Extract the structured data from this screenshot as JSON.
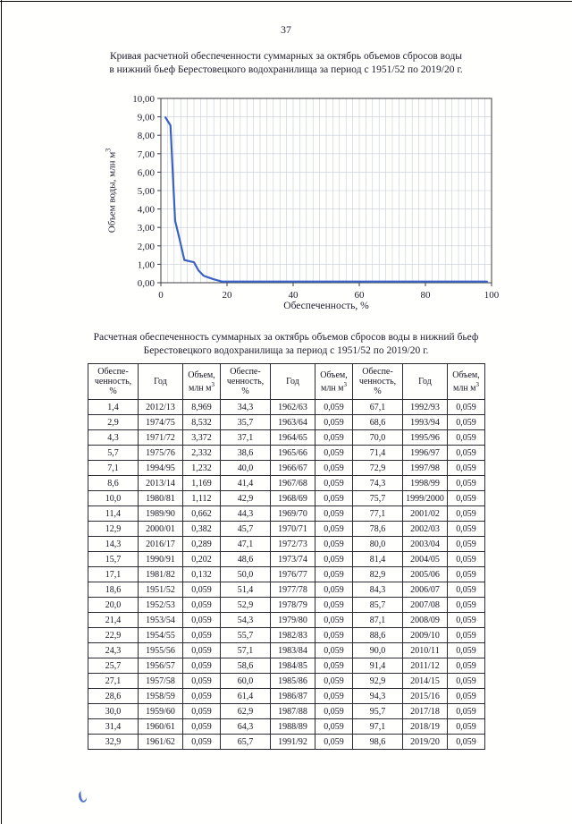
{
  "page": {
    "number": "37"
  },
  "chart": {
    "title_line1": "Кривая расчетной обеспеченности суммарных за октябрь объемов сбросов воды",
    "title_line2": "в нижний бьеф Берестовецкого водохранилища за период с 1951/52 по 2019/20 г.",
    "ylabel_main": "Объем воды, млн м",
    "ylabel_sup": "3",
    "xlabel": "Обеспеченность, %"
  },
  "chart_data": {
    "type": "line",
    "title": "Кривая расчетной обеспеченности суммарных за октябрь объемов сбросов воды в нижний бьеф Берестовецкого водохранилища за период с 1951/52 по 2019/20 г.",
    "xlabel": "Обеспеченность, %",
    "ylabel": "Объем воды, млн м3",
    "xlim": [
      0,
      100
    ],
    "ylim": [
      0,
      10
    ],
    "grid": true,
    "legend": "none",
    "line_color": "#3a62c4",
    "x_ticks": [
      {
        "v": 0,
        "label": "0"
      },
      {
        "v": 20,
        "label": "20"
      },
      {
        "v": 40,
        "label": "40"
      },
      {
        "v": 60,
        "label": "60"
      },
      {
        "v": 80,
        "label": "80"
      },
      {
        "v": 100,
        "label": "100"
      }
    ],
    "y_ticks": [
      {
        "v": 0,
        "label": "0,00"
      },
      {
        "v": 1,
        "label": "1,00"
      },
      {
        "v": 2,
        "label": "2,00"
      },
      {
        "v": 3,
        "label": "3,00"
      },
      {
        "v": 4,
        "label": "4,00"
      },
      {
        "v": 5,
        "label": "5,00"
      },
      {
        "v": 6,
        "label": "6,00"
      },
      {
        "v": 7,
        "label": "7,00"
      },
      {
        "v": 8,
        "label": "8,00"
      },
      {
        "v": 9,
        "label": "9,00"
      },
      {
        "v": 10,
        "label": "10,00"
      }
    ],
    "x": [
      1.4,
      2.9,
      4.3,
      5.7,
      7.1,
      8.6,
      10.0,
      11.4,
      12.9,
      14.3,
      15.7,
      17.1,
      18.6,
      20.0,
      21.4,
      22.9,
      24.3,
      25.7,
      27.1,
      28.6,
      30.0,
      31.4,
      32.9,
      34.3,
      35.7,
      37.1,
      38.6,
      40.0,
      41.4,
      42.9,
      44.3,
      45.7,
      47.1,
      48.6,
      50.0,
      51.4,
      52.9,
      54.3,
      55.7,
      57.1,
      58.6,
      60.0,
      61.4,
      62.9,
      64.3,
      65.7,
      67.1,
      68.6,
      70.0,
      71.4,
      72.9,
      74.3,
      75.7,
      77.1,
      78.6,
      80.0,
      81.4,
      82.9,
      84.3,
      85.7,
      87.1,
      88.6,
      90.0,
      91.4,
      92.9,
      94.3,
      95.7,
      97.1,
      98.6
    ],
    "y": [
      8.969,
      8.532,
      3.372,
      2.332,
      1.232,
      1.169,
      1.112,
      0.662,
      0.382,
      0.289,
      0.202,
      0.132,
      0.059,
      0.059,
      0.059,
      0.059,
      0.059,
      0.059,
      0.059,
      0.059,
      0.059,
      0.059,
      0.059,
      0.059,
      0.059,
      0.059,
      0.059,
      0.059,
      0.059,
      0.059,
      0.059,
      0.059,
      0.059,
      0.059,
      0.059,
      0.059,
      0.059,
      0.059,
      0.059,
      0.059,
      0.059,
      0.059,
      0.059,
      0.059,
      0.059,
      0.059,
      0.059,
      0.059,
      0.059,
      0.059,
      0.059,
      0.059,
      0.059,
      0.059,
      0.059,
      0.059,
      0.059,
      0.059,
      0.059,
      0.059,
      0.059,
      0.059,
      0.059,
      0.059,
      0.059,
      0.059,
      0.059,
      0.059,
      0.059
    ]
  },
  "table": {
    "title_line1": "Расчетная обеспеченность суммарных за октябрь объемов сбросов воды в нижний бьеф",
    "title_line2": "Берестовецкого водохранилища за период с 1951/52 по 2019/20 г.",
    "header_groups": [
      {
        "col1": "Обеспе-\nченность,\n%",
        "col2": "Год",
        "col3_main": "Объем,\nмлн м",
        "col3_sup": "3"
      },
      {
        "col1": "Обеспе-\nченность,\n%",
        "col2": "Год",
        "col3_main": "Объем,\nмлн м",
        "col3_sup": "3"
      },
      {
        "col1": "Обеспе-\nченность,\n%",
        "col2": "Год",
        "col3_main": "Объем,\nмлн м",
        "col3_sup": "3"
      }
    ],
    "rows": [
      [
        "1,4",
        "2012/13",
        "8,969",
        "34,3",
        "1962/63",
        "0,059",
        "67,1",
        "1992/93",
        "0,059"
      ],
      [
        "2,9",
        "1974/75",
        "8,532",
        "35,7",
        "1963/64",
        "0,059",
        "68,6",
        "1993/94",
        "0,059"
      ],
      [
        "4,3",
        "1971/72",
        "3,372",
        "37,1",
        "1964/65",
        "0,059",
        "70,0",
        "1995/96",
        "0,059"
      ],
      [
        "5,7",
        "1975/76",
        "2,332",
        "38,6",
        "1965/66",
        "0,059",
        "71,4",
        "1996/97",
        "0,059"
      ],
      [
        "7,1",
        "1994/95",
        "1,232",
        "40,0",
        "1966/67",
        "0,059",
        "72,9",
        "1997/98",
        "0,059"
      ],
      [
        "8,6",
        "2013/14",
        "1,169",
        "41,4",
        "1967/68",
        "0,059",
        "74,3",
        "1998/99",
        "0,059"
      ],
      [
        "10,0",
        "1980/81",
        "1,112",
        "42,9",
        "1968/69",
        "0,059",
        "75,7",
        "1999/2000",
        "0,059"
      ],
      [
        "11,4",
        "1989/90",
        "0,662",
        "44,3",
        "1969/70",
        "0,059",
        "77,1",
        "2001/02",
        "0,059"
      ],
      [
        "12,9",
        "2000/01",
        "0,382",
        "45,7",
        "1970/71",
        "0,059",
        "78,6",
        "2002/03",
        "0,059"
      ],
      [
        "14,3",
        "2016/17",
        "0,289",
        "47,1",
        "1972/73",
        "0,059",
        "80,0",
        "2003/04",
        "0,059"
      ],
      [
        "15,7",
        "1990/91",
        "0,202",
        "48,6",
        "1973/74",
        "0,059",
        "81,4",
        "2004/05",
        "0,059"
      ],
      [
        "17,1",
        "1981/82",
        "0,132",
        "50,0",
        "1976/77",
        "0,059",
        "82,9",
        "2005/06",
        "0,059"
      ],
      [
        "18,6",
        "1951/52",
        "0,059",
        "51,4",
        "1977/78",
        "0,059",
        "84,3",
        "2006/07",
        "0,059"
      ],
      [
        "20,0",
        "1952/53",
        "0,059",
        "52,9",
        "1978/79",
        "0,059",
        "85,7",
        "2007/08",
        "0,059"
      ],
      [
        "21,4",
        "1953/54",
        "0,059",
        "54,3",
        "1979/80",
        "0,059",
        "87,1",
        "2008/09",
        "0,059"
      ],
      [
        "22,9",
        "1954/55",
        "0,059",
        "55,7",
        "1982/83",
        "0,059",
        "88,6",
        "2009/10",
        "0,059"
      ],
      [
        "24,3",
        "1955/56",
        "0,059",
        "57,1",
        "1983/84",
        "0,059",
        "90,0",
        "2010/11",
        "0,059"
      ],
      [
        "25,7",
        "1956/57",
        "0,059",
        "58,6",
        "1984/85",
        "0,059",
        "91,4",
        "2011/12",
        "0,059"
      ],
      [
        "27,1",
        "1957/58",
        "0,059",
        "60,0",
        "1985/86",
        "0,059",
        "92,9",
        "2014/15",
        "0,059"
      ],
      [
        "28,6",
        "1958/59",
        "0,059",
        "61,4",
        "1986/87",
        "0,059",
        "94,3",
        "2015/16",
        "0,059"
      ],
      [
        "30,0",
        "1959/60",
        "0,059",
        "62,9",
        "1987/88",
        "0,059",
        "95,7",
        "2017/18",
        "0,059"
      ],
      [
        "31,4",
        "1960/61",
        "0,059",
        "64,3",
        "1988/89",
        "0,059",
        "97,1",
        "2018/19",
        "0,059"
      ],
      [
        "32,9",
        "1961/62",
        "0,059",
        "65,7",
        "1991/92",
        "0,059",
        "98,6",
        "2019/20",
        "0,059"
      ]
    ]
  }
}
